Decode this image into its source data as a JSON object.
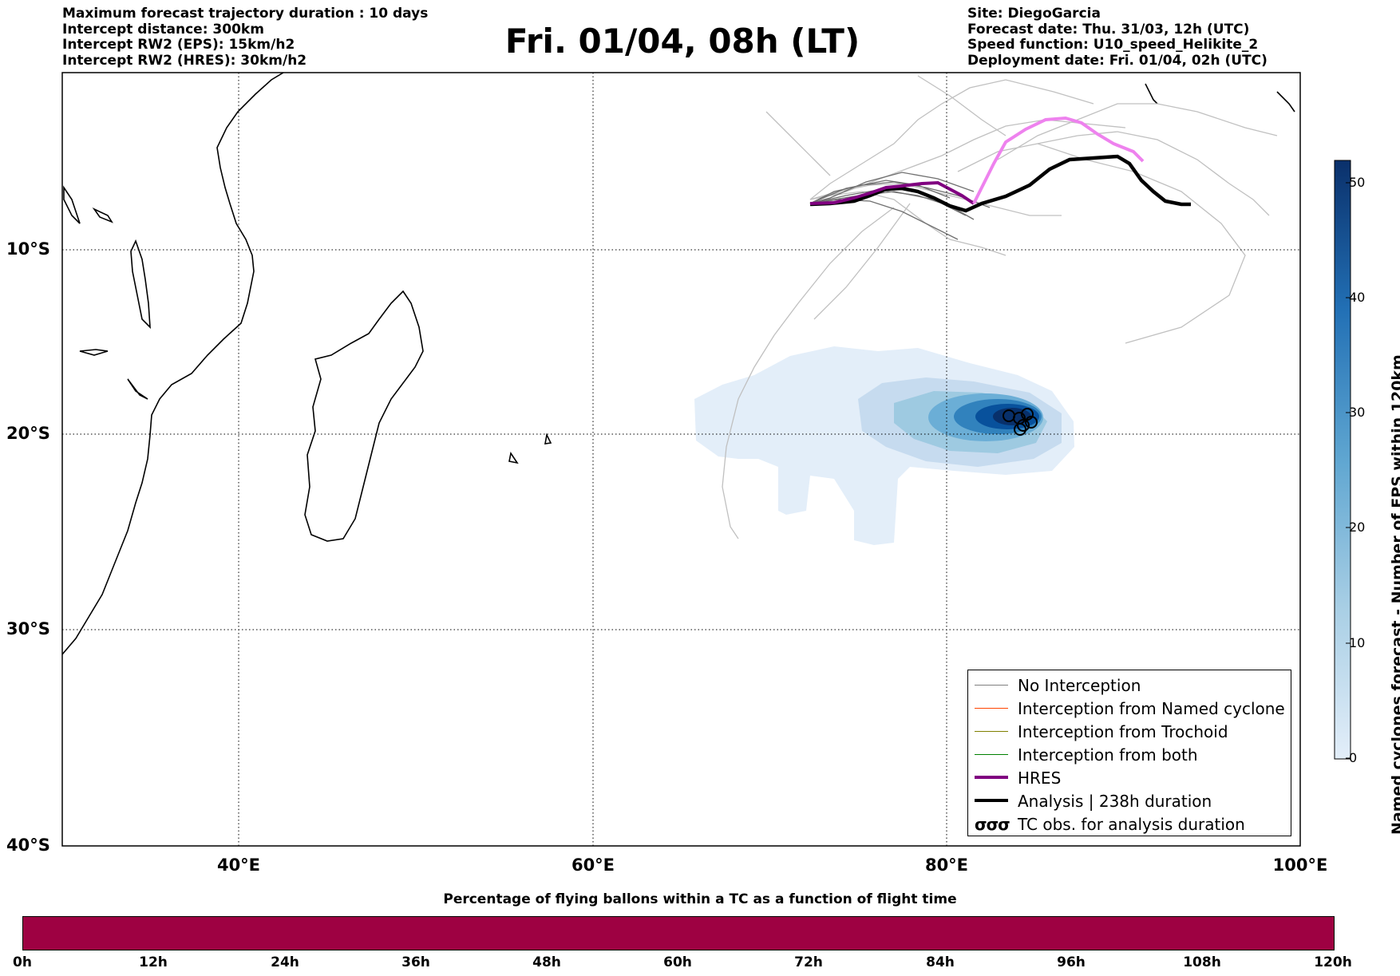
{
  "title": "Fri. 01/04, 08h (LT)",
  "header_left": [
    "Maximum forecast trajectory duration : 10 days",
    "Intercept distance: 300km",
    "Intercept RW2 (EPS):  15km/h2",
    "Intercept RW2 (HRES): 30km/h2"
  ],
  "header_right": [
    "Site: DiegoGarcia",
    "Forecast date: Thu. 31/03, 12h (UTC)",
    "Speed function: U10_speed_Helikite_2",
    "Deployment date: Fri. 01/04, 02h (UTC)"
  ],
  "map": {
    "lat_labels": [
      "10°S",
      "20°S",
      "30°S",
      "40°S"
    ],
    "lon_labels": [
      "40°E",
      "60°E",
      "80°E",
      "100°E"
    ],
    "grid": "dotted"
  },
  "legend": {
    "entries": [
      {
        "label": "No Interception",
        "color": "#808080"
      },
      {
        "label": "Interception from Named cyclone",
        "color": "#ff4500"
      },
      {
        "label": "Interception from Trochoid",
        "color": "#808000"
      },
      {
        "label": "Interception from both",
        "color": "#008000"
      },
      {
        "label": "HRES",
        "color": "#800080"
      },
      {
        "label": "Analysis | 238h duration",
        "color": "#000000"
      },
      {
        "label": "TC obs. for analysis duration",
        "color": "#000000",
        "icon": "circle-markers-icon",
        "glyph": "σσσ"
      }
    ]
  },
  "colorbar_vertical": {
    "title": "Named cyclones forecast - Number of EPS within 120km",
    "ticks": [
      "0",
      "10",
      "20",
      "30",
      "40",
      "50"
    ],
    "colormap": "Blues"
  },
  "colorbar_bottom": {
    "title": "Percentage of flying ballons within a TC as a function of flight time",
    "color": "#9e0142",
    "ticks": [
      "0h",
      "12h",
      "24h",
      "36h",
      "48h",
      "60h",
      "72h",
      "84h",
      "96h",
      "108h",
      "120h"
    ]
  }
}
